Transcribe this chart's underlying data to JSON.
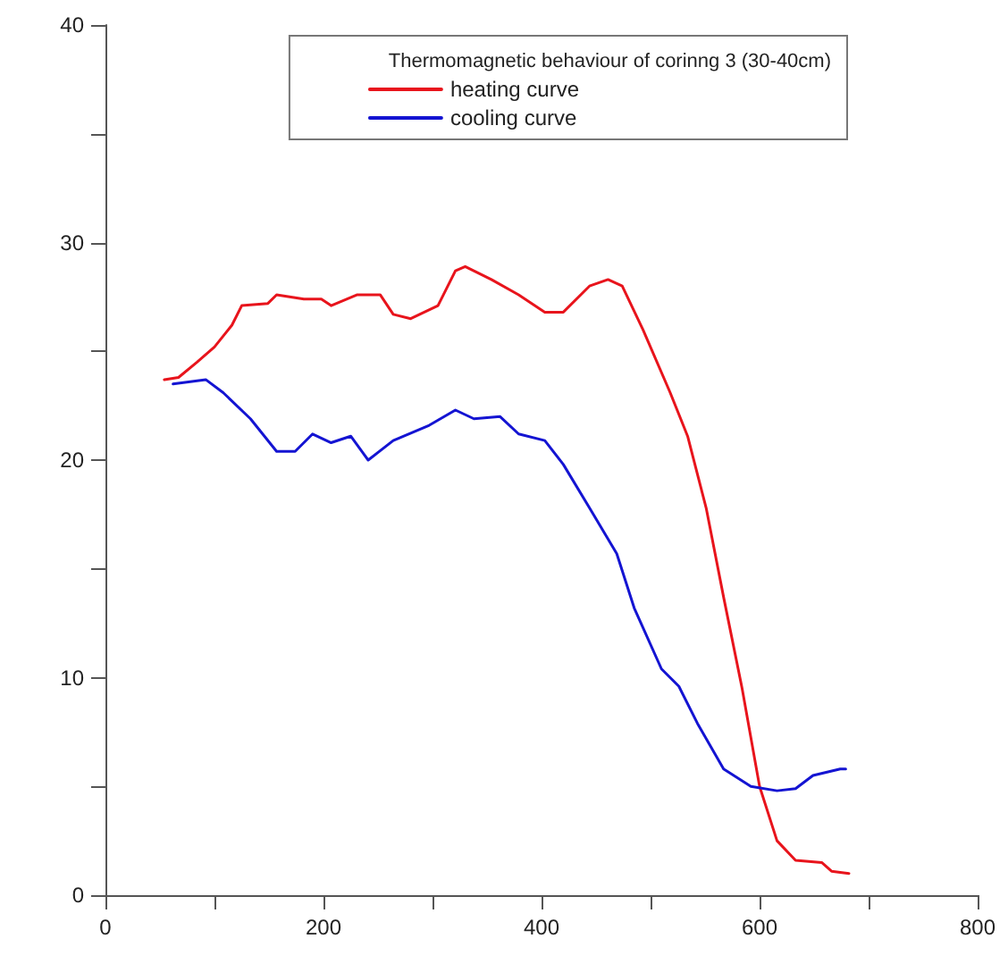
{
  "chart_data": {
    "type": "line",
    "legend_title": "Thermomagnetic behaviour of corinng 3 (30-40cm)",
    "legend": "top",
    "grid": false,
    "marker": "none",
    "line_style": "solid",
    "xlim": [
      0,
      800
    ],
    "xticks": [
      0,
      {
        "value": 100,
        "label": null
      },
      200,
      {
        "value": 300,
        "label": null
      },
      400,
      {
        "value": 500,
        "label": null
      },
      600,
      {
        "value": 700,
        "label": null
      },
      800
    ],
    "ylim": [
      0,
      40
    ],
    "yticks": [
      0,
      {
        "value": 5,
        "label": null
      },
      10,
      {
        "value": 15,
        "label": null
      },
      20,
      {
        "value": 25,
        "label": null
      },
      30,
      {
        "value": 35,
        "label": null
      },
      40
    ],
    "series": [
      {
        "name": "heating curve",
        "color": "#e8141c",
        "x": [
          54,
          67,
          84,
          100,
          116,
          125,
          149,
          157,
          182,
          198,
          207,
          231,
          252,
          264,
          280,
          305,
          321,
          330,
          354,
          379,
          403,
          420,
          444,
          461,
          474,
          493,
          518,
          534,
          551,
          567,
          584,
          600,
          616,
          633,
          657,
          666,
          682
        ],
        "values": [
          23.7,
          23.8,
          24.5,
          25.2,
          26.2,
          27.1,
          27.2,
          27.6,
          27.4,
          27.4,
          27.1,
          27.6,
          27.6,
          26.7,
          26.5,
          27.1,
          28.7,
          28.9,
          28.3,
          27.6,
          26.8,
          26.8,
          28.0,
          28.3,
          28.0,
          26.0,
          23.1,
          21.1,
          17.8,
          13.7,
          9.5,
          5.0,
          2.5,
          1.6,
          1.5,
          1.1,
          1.0
        ]
      },
      {
        "name": "cooling curve",
        "color": "#1414d2",
        "x": [
          62,
          92,
          108,
          133,
          157,
          174,
          190,
          207,
          225,
          241,
          264,
          297,
          321,
          338,
          362,
          379,
          403,
          420,
          444,
          469,
          485,
          510,
          526,
          543,
          567,
          592,
          616,
          633,
          649,
          674,
          679
        ],
        "values": [
          23.5,
          23.7,
          23.1,
          21.9,
          20.4,
          20.4,
          21.2,
          20.8,
          21.1,
          20.0,
          20.9,
          21.6,
          22.3,
          21.9,
          22.0,
          21.2,
          20.9,
          19.8,
          17.8,
          15.7,
          13.2,
          10.4,
          9.6,
          7.9,
          5.8,
          5.0,
          4.8,
          4.9,
          5.5,
          5.8,
          5.8
        ]
      }
    ]
  }
}
